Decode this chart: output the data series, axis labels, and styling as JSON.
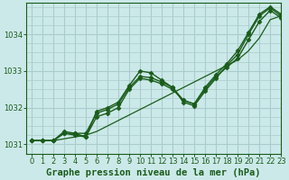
{
  "title": "Graphe pression niveau de la mer (hPa)",
  "bg_color": "#cce9e9",
  "grid_color": "#aacccc",
  "line_color": "#1a5c1a",
  "marker_color": "#1a5c1a",
  "xlim": [
    -0.5,
    23
  ],
  "ylim": [
    1030.75,
    1034.85
  ],
  "yticks": [
    1031,
    1032,
    1033,
    1034
  ],
  "xticks": [
    0,
    1,
    2,
    3,
    4,
    5,
    6,
    7,
    8,
    9,
    10,
    11,
    12,
    13,
    14,
    15,
    16,
    17,
    18,
    19,
    20,
    21,
    22,
    23
  ],
  "series": [
    {
      "data": [
        1031.1,
        1031.1,
        1031.1,
        1031.15,
        1031.2,
        1031.25,
        1031.35,
        1031.5,
        1031.65,
        1031.8,
        1031.95,
        1032.1,
        1032.25,
        1032.4,
        1032.55,
        1032.7,
        1032.85,
        1033.0,
        1033.15,
        1033.3,
        1033.55,
        1033.9,
        1034.4,
        1034.5
      ],
      "marker": false,
      "lw": 0.9
    },
    {
      "data": [
        1031.1,
        1031.1,
        1031.1,
        1031.3,
        1031.3,
        1031.2,
        1031.9,
        1032.0,
        1032.15,
        1032.6,
        1033.0,
        1032.95,
        1032.75,
        1032.55,
        1032.15,
        1032.05,
        1032.45,
        1032.8,
        1033.15,
        1033.45,
        1034.0,
        1034.5,
        1034.72,
        1034.5
      ],
      "marker": true,
      "lw": 1.0
    },
    {
      "data": [
        1031.1,
        1031.1,
        1031.1,
        1031.3,
        1031.25,
        1031.2,
        1031.75,
        1031.85,
        1032.0,
        1032.5,
        1032.8,
        1032.75,
        1032.65,
        1032.5,
        1032.2,
        1032.1,
        1032.5,
        1032.85,
        1033.1,
        1033.35,
        1033.85,
        1034.35,
        1034.65,
        1034.45
      ],
      "marker": true,
      "lw": 1.0
    },
    {
      "data": [
        1031.1,
        1031.1,
        1031.1,
        1031.35,
        1031.3,
        1031.3,
        1031.85,
        1031.95,
        1032.1,
        1032.55,
        1032.85,
        1032.82,
        1032.7,
        1032.55,
        1032.2,
        1032.1,
        1032.55,
        1032.9,
        1033.2,
        1033.55,
        1034.05,
        1034.55,
        1034.75,
        1034.55
      ],
      "marker": true,
      "lw": 1.0
    }
  ],
  "ylabel_fontsize": 7,
  "xlabel_fontsize": 7.5,
  "tick_fontsize": 6.0
}
